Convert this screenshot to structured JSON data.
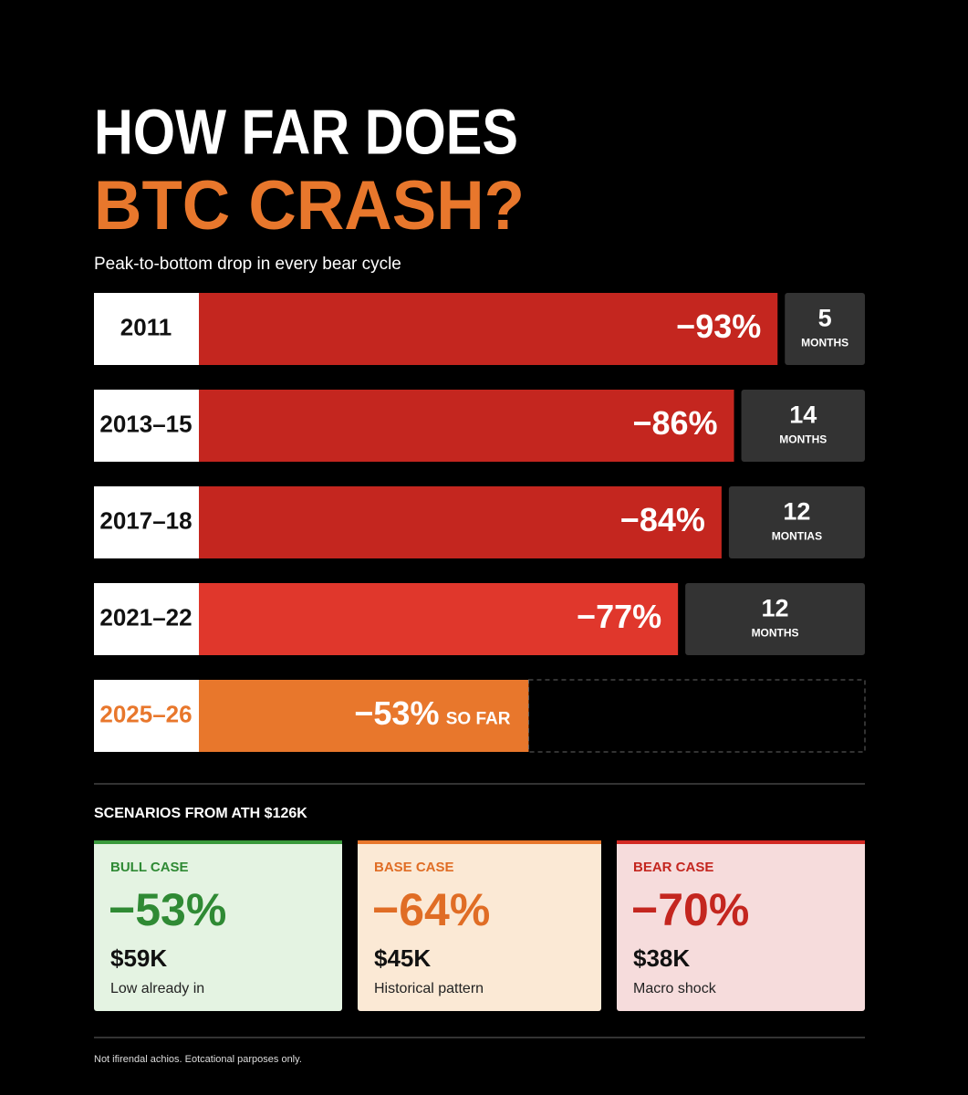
{
  "header": {
    "title_line1": "HOW FAR DOES",
    "title_line2": "BTC CRASH?",
    "subtitle": "Peak-to-bottom drop in every bear cycle"
  },
  "chart_data": {
    "type": "bar",
    "orientation": "horizontal",
    "categories": [
      "2011",
      "2013–15",
      "2017–18",
      "2021–22",
      "2025–26"
    ],
    "values": [
      -93,
      -86,
      -84,
      -77,
      -53
    ],
    "value_labels": [
      "−93%",
      "−86%",
      "−84%",
      "−77%",
      "−53%"
    ],
    "colors": [
      "#c4261f",
      "#c4261f",
      "#c4261f",
      "#e0372c",
      "#e8772c"
    ],
    "xlim": [
      0,
      -100
    ],
    "annotation": "SO FAR",
    "durations": [
      {
        "number": "5",
        "unit": "MONTHS"
      },
      {
        "number": "14",
        "unit": "MONTHS"
      },
      {
        "number": "12",
        "unit": "MONTIAS"
      },
      {
        "number": "12",
        "unit": "MONTHS"
      }
    ]
  },
  "scenarios": {
    "heading": "SCENARIOS FROM ATH $126K",
    "cards": [
      {
        "label": "BULL CASE",
        "drop": "−53%",
        "price": "$59K",
        "note": "Low already in"
      },
      {
        "label": "BASE CASE",
        "drop": "−64%",
        "price": "$45K",
        "note": "Historical pattern"
      },
      {
        "label": "BEAR CASE",
        "drop": "−70%",
        "price": "$38K",
        "note": "Macro shock"
      }
    ]
  },
  "footer": {
    "disclaimer": "Not ifirendal achios. Eotcational parposes only."
  }
}
